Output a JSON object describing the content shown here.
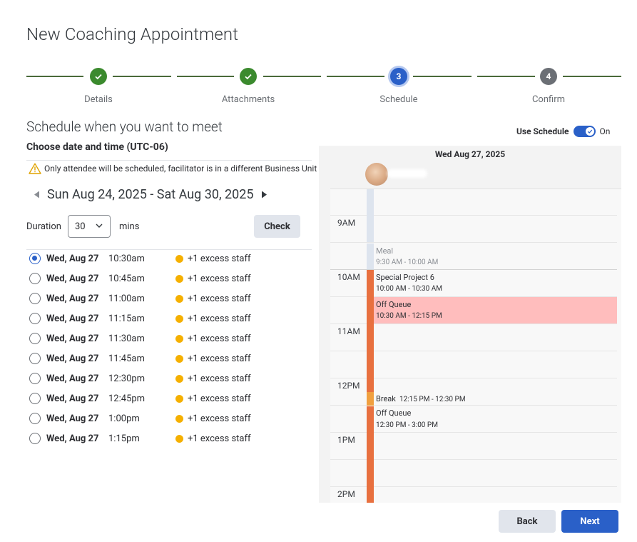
{
  "page": {
    "title": "New Coaching Appointment"
  },
  "stepper": {
    "steps": [
      {
        "label": "Details",
        "state": "done",
        "icon": "check-icon"
      },
      {
        "label": "Attachments",
        "state": "done",
        "icon": "check-icon"
      },
      {
        "label": "Schedule",
        "state": "current",
        "number": "3"
      },
      {
        "label": "Confirm",
        "state": "pending",
        "number": "4"
      }
    ]
  },
  "schedule": {
    "title": "Schedule when you want to meet",
    "subtitle": "Choose date and time (UTC-06)",
    "warning": "Only attendee will be scheduled, facilitator is in a different Business Unit",
    "week_range": "Sun Aug 24, 2025 - Sat Aug 30, 2025",
    "duration_label": "Duration",
    "duration_value": "30",
    "duration_unit": "mins",
    "check_label": "Check"
  },
  "slots": [
    {
      "date": "Wed, Aug 27",
      "time": "10:30am",
      "status": "+1 excess staff",
      "selected": true
    },
    {
      "date": "Wed, Aug 27",
      "time": "10:45am",
      "status": "+1 excess staff",
      "selected": false
    },
    {
      "date": "Wed, Aug 27",
      "time": "11:00am",
      "status": "+1 excess staff",
      "selected": false
    },
    {
      "date": "Wed, Aug 27",
      "time": "11:15am",
      "status": "+1 excess staff",
      "selected": false
    },
    {
      "date": "Wed, Aug 27",
      "time": "11:30am",
      "status": "+1 excess staff",
      "selected": false
    },
    {
      "date": "Wed, Aug 27",
      "time": "11:45am",
      "status": "+1 excess staff",
      "selected": false
    },
    {
      "date": "Wed, Aug 27",
      "time": "12:30pm",
      "status": "+1 excess staff",
      "selected": false
    },
    {
      "date": "Wed, Aug 27",
      "time": "12:45pm",
      "status": "+1 excess staff",
      "selected": false
    },
    {
      "date": "Wed, Aug 27",
      "time": "1:00pm",
      "status": "+1 excess staff",
      "selected": false
    },
    {
      "date": "Wed, Aug 27",
      "time": "1:15pm",
      "status": "+1 excess staff",
      "selected": false
    }
  ],
  "use_schedule": {
    "label": "Use Schedule",
    "state": "On"
  },
  "calendar": {
    "date": "Wed Aug 27, 2025",
    "hours": [
      "9AM",
      "10AM",
      "11AM",
      "12PM",
      "1PM",
      "2PM"
    ],
    "events": {
      "meal": {
        "title": "Meal",
        "time": "9:30 AM - 10:00 AM"
      },
      "project": {
        "title": "Special Project 6",
        "time": "10:00 AM - 10:30 AM"
      },
      "off_queue_1": {
        "title": "Off Queue",
        "time": "10:30 AM - 12:15 PM"
      },
      "break": {
        "title": "Break",
        "time": "12:15 PM - 12:30 PM"
      },
      "off_queue_2": {
        "title": "Off Queue",
        "time": "12:30 PM - 3:00 PM"
      }
    }
  },
  "footer": {
    "back_label": "Back",
    "next_label": "Next"
  },
  "colors": {
    "accent": "#2a60c8",
    "done": "#3b8a2e",
    "excess_dot": "#f5b000",
    "activity": "#e8703f",
    "off_queue_highlight": "#ffbdbd"
  }
}
